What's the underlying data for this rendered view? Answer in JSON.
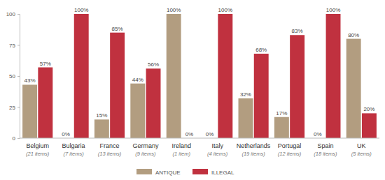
{
  "chart_data": {
    "type": "bar",
    "categories": [
      "Belgium",
      "Bulgaria",
      "France",
      "Germany",
      "Ireland",
      "Italy",
      "Netherlands",
      "Portugal",
      "Spain",
      "UK"
    ],
    "category_subtitles": [
      "(21 items)",
      "(7 items)",
      "(13 items)",
      "(9 items)",
      "(1 item)",
      "(4 items)",
      "(19 items)",
      "(12 items)",
      "(18 items)",
      "(5 items)"
    ],
    "series": [
      {
        "name": "ANTIQUE",
        "color": "#b29d80",
        "values": [
          43,
          0,
          15,
          44,
          100,
          0,
          32,
          17,
          0,
          80
        ],
        "value_labels": [
          "43%",
          "0%",
          "15%",
          "44%",
          "100%",
          "0%",
          "32%",
          "17%",
          "0%",
          "80%"
        ]
      },
      {
        "name": "ILLEGAL",
        "color": "#c0313f",
        "values": [
          57,
          100,
          85,
          56,
          0,
          100,
          68,
          83,
          100,
          20
        ],
        "value_labels": [
          "57%",
          "100%",
          "85%",
          "56%",
          "0%",
          "100%",
          "68%",
          "83%",
          "100%",
          "20%"
        ]
      }
    ],
    "ylim": [
      0,
      100
    ],
    "yticks": [
      0,
      25,
      50,
      75,
      100
    ],
    "grid": false,
    "legend": "bottom",
    "data_labels": true
  }
}
